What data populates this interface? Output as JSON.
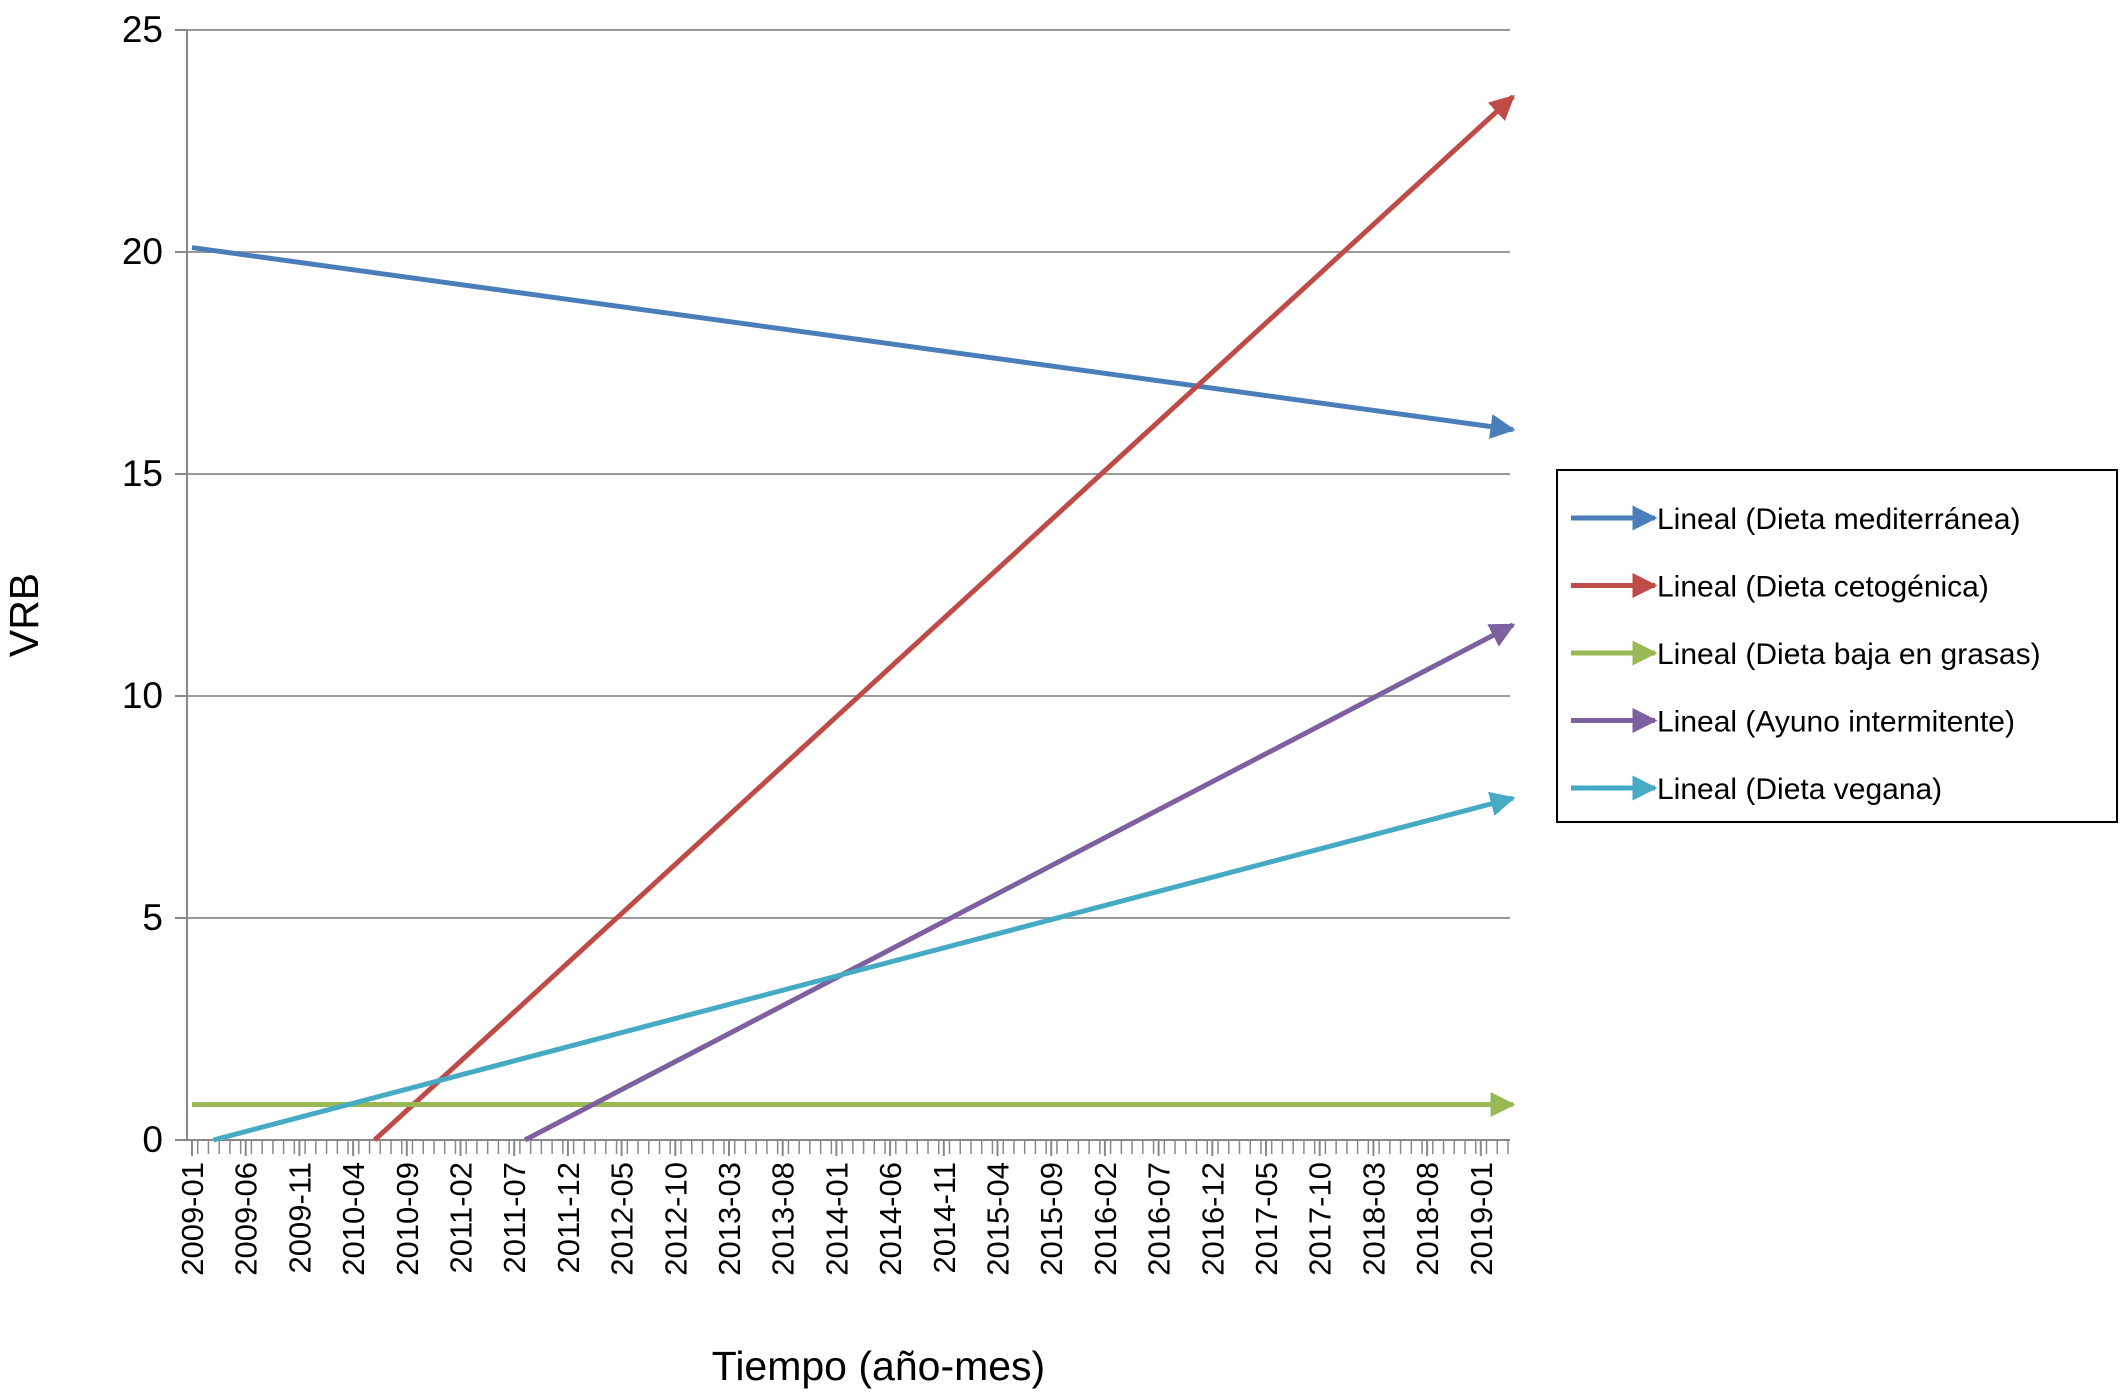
{
  "chart_data": {
    "type": "line",
    "xlabel": "Tiempo (año-mes)",
    "ylabel": "VRB",
    "ylim": [
      0,
      25
    ],
    "y_ticks": [
      "0",
      "5",
      "10",
      "15",
      "20",
      "25"
    ],
    "x_ticks": [
      "2009-01",
      "2009-06",
      "2009-11",
      "2010-04",
      "2010-09",
      "2011-02",
      "2011-07",
      "2011-12",
      "2012-05",
      "2012-10",
      "2013-03",
      "2013-08",
      "2014-01",
      "2014-06",
      "2014-11",
      "2015-04",
      "2015-09",
      "2016-02",
      "2016-07",
      "2016-12",
      "2017-05",
      "2017-10",
      "2018-03",
      "2018-08",
      "2019-01"
    ],
    "grid": "horizontal",
    "legend_position": "right",
    "series": [
      {
        "name": "Lineal (Dieta mediterránea)",
        "color": "#4a7ebb",
        "start": {
          "x": "2009-01",
          "y": 20.1
        },
        "end": {
          "x": "2019-04",
          "y": 16.0
        }
      },
      {
        "name": "Lineal (Dieta cetogénica)",
        "color": "#be4b48",
        "start": {
          "x": "2010-06",
          "y": 0
        },
        "end": {
          "x": "2019-04",
          "y": 23.5
        }
      },
      {
        "name": "Lineal (Dieta baja en grasas)",
        "color": "#98b954",
        "start": {
          "x": "2009-01",
          "y": 0.8
        },
        "end": {
          "x": "2019-04",
          "y": 0.8
        }
      },
      {
        "name": "Lineal (Ayuno intermitente)",
        "color": "#7d60a0",
        "start": {
          "x": "2011-08",
          "y": 0
        },
        "end": {
          "x": "2019-04",
          "y": 11.6
        }
      },
      {
        "name": "Lineal (Dieta vegana)",
        "color": "#46aac5",
        "start": {
          "x": "2009-03",
          "y": 0
        },
        "end": {
          "x": "2019-04",
          "y": 7.7
        }
      }
    ]
  }
}
